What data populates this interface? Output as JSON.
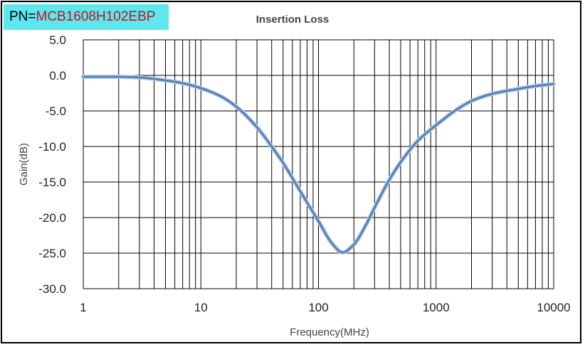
{
  "part_number": {
    "prefix": "PN=",
    "value": "MCB1608H102EBP",
    "background_color": "#5fe6ee",
    "value_color": "#c0141b"
  },
  "chart_data": {
    "type": "line",
    "title": "Insertion Loss",
    "xlabel": "Frequency(MHz)",
    "ylabel": "Gain(dB)",
    "x_scale": "log",
    "xlim": [
      1,
      10000
    ],
    "ylim": [
      -30,
      5
    ],
    "x_ticks": [
      "1",
      "10",
      "100",
      "1000",
      "10000"
    ],
    "y_ticks": [
      "5.0",
      "0.0",
      "-5.0",
      "-10.0",
      "-15.0",
      "-20.0",
      "-25.0",
      "-30.0"
    ],
    "grid": true,
    "legend": "none",
    "line_color": "#4f7fb8",
    "series": [
      {
        "x": [
          1,
          2,
          3,
          5,
          7,
          10,
          15,
          20,
          30,
          40,
          50,
          70,
          100,
          130,
          160,
          200,
          250,
          300,
          400,
          500,
          700,
          1000,
          1500,
          2000,
          3000,
          5000,
          7000,
          10000
        ],
        "y": [
          -0.2,
          -0.2,
          -0.3,
          -0.7,
          -1.1,
          -1.8,
          -3.0,
          -4.4,
          -7.3,
          -10.0,
          -12.3,
          -16.3,
          -20.5,
          -23.6,
          -24.9,
          -23.8,
          -21.2,
          -18.6,
          -14.7,
          -12.2,
          -9.2,
          -7.0,
          -4.8,
          -3.6,
          -2.6,
          -1.9,
          -1.5,
          -1.2
        ]
      }
    ]
  }
}
